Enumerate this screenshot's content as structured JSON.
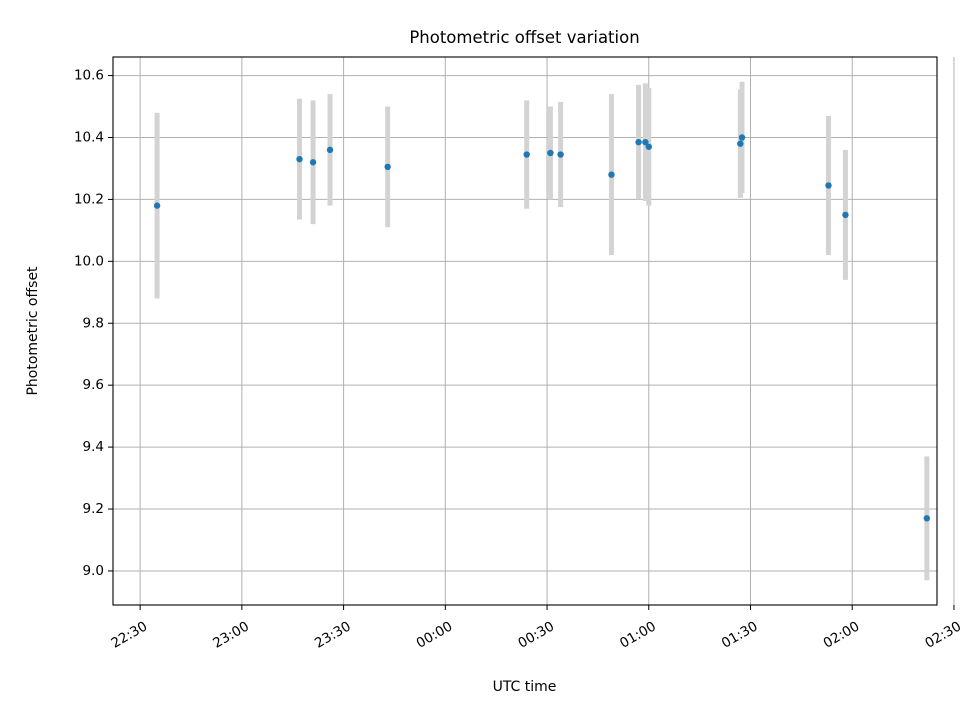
{
  "chart_data": {
    "type": "scatter",
    "title": "Photometric offset variation",
    "xlabel": "UTC time",
    "ylabel": "Photometric offset",
    "x_axis": {
      "unit": "minutes relative to 00:00 UTC",
      "range": [
        -98,
        145
      ],
      "ticks": [
        -90,
        -60,
        -30,
        0,
        30,
        60,
        90,
        120,
        150
      ],
      "tick_labels": [
        "22:30",
        "23:00",
        "23:30",
        "00:00",
        "00:30",
        "01:00",
        "01:30",
        "02:00",
        "02:30"
      ]
    },
    "y_axis": {
      "range": [
        8.89,
        10.66
      ],
      "ticks": [
        9.0,
        9.2,
        9.4,
        9.6,
        9.8,
        10.0,
        10.2,
        10.4,
        10.6
      ],
      "tick_labels": [
        "9.0",
        "9.2",
        "9.4",
        "9.6",
        "9.8",
        "10.0",
        "10.2",
        "10.4",
        "10.6"
      ]
    },
    "grid": true,
    "series": [
      {
        "marker_color": "#1f77b4",
        "errorbar_color": "#d3d3d3",
        "points": [
          {
            "x": -85,
            "y": 10.18,
            "err": 0.3
          },
          {
            "x": -43,
            "y": 10.33,
            "err": 0.195
          },
          {
            "x": -39,
            "y": 10.32,
            "err": 0.2
          },
          {
            "x": -34,
            "y": 10.36,
            "err": 0.18
          },
          {
            "x": -17,
            "y": 10.305,
            "err": 0.195
          },
          {
            "x": 24,
            "y": 10.345,
            "err": 0.175
          },
          {
            "x": 31,
            "y": 10.35,
            "err": 0.15
          },
          {
            "x": 34,
            "y": 10.345,
            "err": 0.17
          },
          {
            "x": 49,
            "y": 10.28,
            "err": 0.26
          },
          {
            "x": 57,
            "y": 10.385,
            "err": 0.185
          },
          {
            "x": 59,
            "y": 10.385,
            "err": 0.19
          },
          {
            "x": 60,
            "y": 10.37,
            "err": 0.19
          },
          {
            "x": 87,
            "y": 10.38,
            "err": 0.175
          },
          {
            "x": 87.5,
            "y": 10.4,
            "err": 0.18
          },
          {
            "x": 113,
            "y": 10.245,
            "err": 0.225
          },
          {
            "x": 118,
            "y": 10.15,
            "err": 0.21
          },
          {
            "x": 142,
            "y": 9.17,
            "err": 0.2
          }
        ]
      }
    ]
  }
}
